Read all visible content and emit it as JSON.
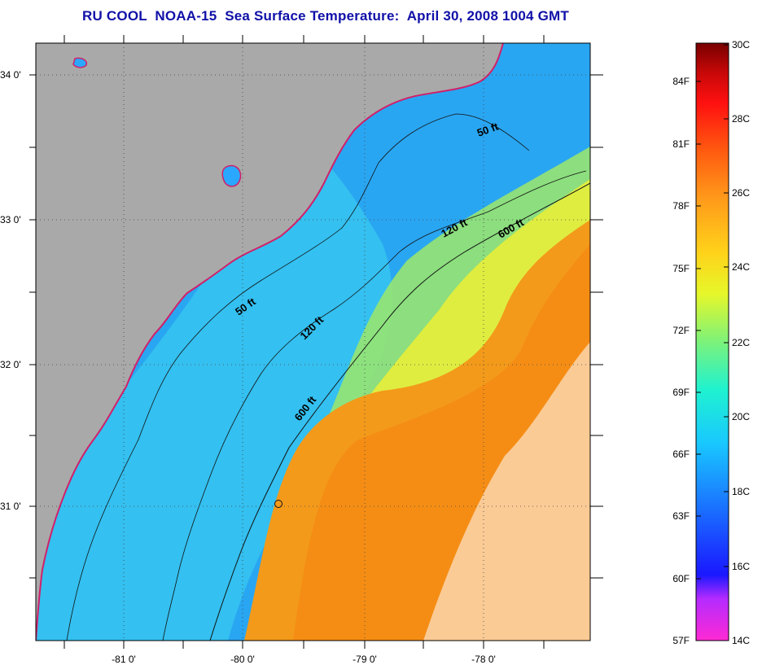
{
  "title": "RU COOL  NOAA-15  Sea Surface Temperature:  April 30, 2008 1004 GMT",
  "map": {
    "lat_labels": [
      "34 0'",
      "33 0'",
      "32 0'",
      "31 0'"
    ],
    "lon_labels": [
      "-81 0'",
      "-80 0'",
      "-79 0'",
      "-78 0'"
    ],
    "contours": [
      "50 ft",
      "50 ft",
      "120 ft",
      "120 ft",
      "600 ft",
      "600 ft"
    ]
  },
  "colorbar": {
    "f_labels": [
      "84F",
      "81F",
      "78F",
      "75F",
      "72F",
      "69F",
      "66F",
      "63F",
      "60F",
      "57F"
    ],
    "c_labels": [
      "30C",
      "28C",
      "26C",
      "24C",
      "22C",
      "20C",
      "18C",
      "16C",
      "14C"
    ],
    "colors": {
      "land": "#a9a9a9",
      "cold": "#2aa8ff",
      "warm": "#f39a1a"
    }
  }
}
